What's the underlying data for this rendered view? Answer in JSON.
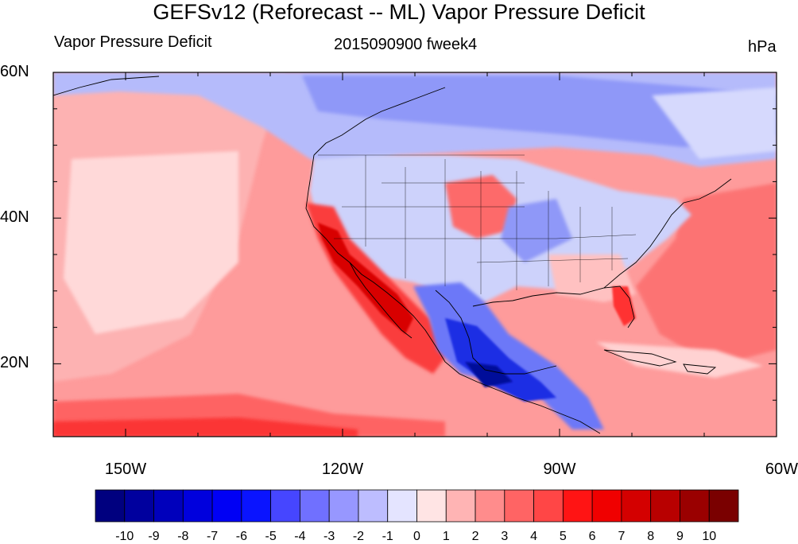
{
  "title": "GEFSv12 (Reforecast -- ML) Vapor Pressure Deficit",
  "left_label": "Vapor Pressure Deficit",
  "center_label": "2015090900 fweek4",
  "right_label": "hPa",
  "map": {
    "lon_range": [
      -160,
      -60
    ],
    "lat_range": [
      10,
      60
    ],
    "lat_ticks": [
      {
        "label": "60N",
        "lat": 60
      },
      {
        "label": "40N",
        "lat": 40
      },
      {
        "label": "20N",
        "lat": 20
      }
    ],
    "lon_ticks": [
      {
        "label": "150W",
        "lon": -150
      },
      {
        "label": "120W",
        "lon": -120
      },
      {
        "label": "90W",
        "lon": -90
      },
      {
        "label": "60W",
        "lon": -60
      }
    ],
    "colors": {
      "ocean_base": "#fe8080",
      "land_mixed": "#c7cdfb",
      "high_latitude": "#a3aefb",
      "strong_dry": "#e0000e",
      "strong_moist": "#0015d8"
    }
  },
  "colorbar": {
    "colors": [
      "#00007f",
      "#00009e",
      "#0000bc",
      "#0000dd",
      "#0000f5",
      "#0a14ff",
      "#4646ff",
      "#7070ff",
      "#9797ff",
      "#bdbdff",
      "#e4e4ff",
      "#ffe4e4",
      "#ffb4b4",
      "#ff8c8c",
      "#ff6464",
      "#ff4646",
      "#ff1414",
      "#f00000",
      "#d40000",
      "#b80000",
      "#9a0000",
      "#7a0000"
    ],
    "labels": [
      "-10",
      "-9",
      "-8",
      "-7",
      "-6",
      "-5",
      "-4",
      "-3",
      "-2",
      "-1",
      "0",
      "1",
      "2",
      "3",
      "4",
      "5",
      "6",
      "7",
      "8",
      "9",
      "10"
    ]
  }
}
